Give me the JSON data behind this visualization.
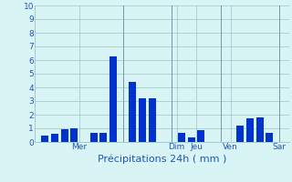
{
  "bar_values": [
    0.45,
    0.6,
    0.95,
    1.0,
    0.65,
    0.7,
    6.3,
    4.4,
    3.2,
    3.2,
    0.65,
    0.35,
    0.85,
    1.2,
    1.75,
    1.8,
    0.65
  ],
  "bar_positions": [
    1,
    2,
    3,
    4,
    6,
    7,
    8,
    10,
    11,
    12,
    15,
    16,
    17,
    21,
    22,
    23,
    24
  ],
  "day_labels": [
    "Mer",
    "Dim",
    "Jeu",
    "Ven",
    "Sar"
  ],
  "day_x": [
    4.5,
    14.5,
    16.5,
    20.0,
    25.0
  ],
  "vline_positions": [
    9.0,
    14.0,
    19.0,
    25.0
  ],
  "xlabel": "Précipitations 24h ( mm )",
  "ylim": [
    0,
    10
  ],
  "yticks": [
    0,
    1,
    2,
    3,
    4,
    5,
    6,
    7,
    8,
    9,
    10
  ],
  "xlim": [
    0,
    26
  ],
  "bar_color": "#0033cc",
  "bg_color": "#d8f4f4",
  "grid_color": "#9ec4c4",
  "bar_width": 0.75
}
